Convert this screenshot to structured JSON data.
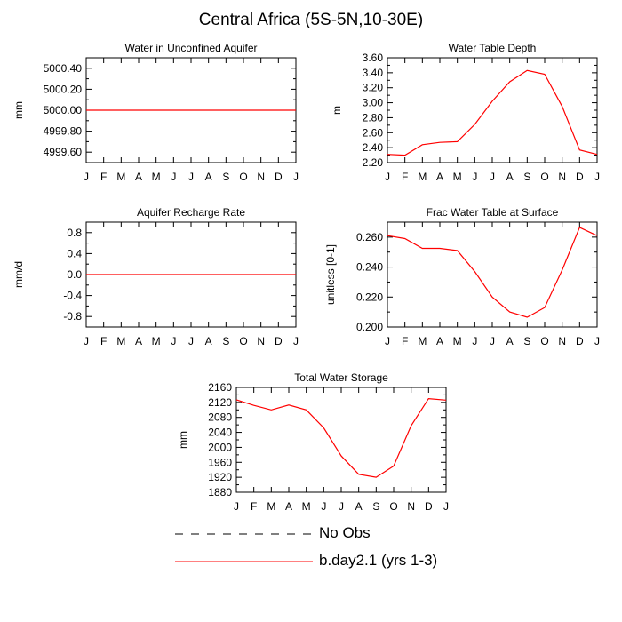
{
  "title": "Central Africa (5S-5N,10-30E)",
  "colors": {
    "model": "#ff0000",
    "obs": "#000000",
    "axis": "#000000",
    "background": "#ffffff"
  },
  "legend": [
    {
      "label": "No Obs",
      "style": "dashed",
      "color": "#000000"
    },
    {
      "label": "b.day2.1 (yrs 1-3)",
      "style": "solid",
      "color": "#ff0000"
    }
  ],
  "chart_data": [
    {
      "type": "line",
      "title": "Water in Unconfined Aquifer",
      "ylabel": "mm",
      "categories": [
        "J",
        "F",
        "M",
        "A",
        "M",
        "J",
        "J",
        "A",
        "S",
        "O",
        "N",
        "D",
        "J"
      ],
      "yticks": [
        "4999.60",
        "4999.80",
        "5000.00",
        "5000.20",
        "5000.40"
      ],
      "ylim": [
        4999.5,
        5000.5
      ],
      "series": [
        {
          "name": "b.day2.1 (yrs 1-3)",
          "values": [
            5000,
            5000,
            5000,
            5000,
            5000,
            5000,
            5000,
            5000,
            5000,
            5000,
            5000,
            5000,
            5000
          ]
        }
      ]
    },
    {
      "type": "line",
      "title": "Water Table Depth",
      "ylabel": "m",
      "categories": [
        "J",
        "F",
        "M",
        "A",
        "M",
        "J",
        "J",
        "A",
        "S",
        "O",
        "N",
        "D",
        "J"
      ],
      "yticks": [
        "2.20",
        "2.40",
        "2.60",
        "2.80",
        "3.00",
        "3.20",
        "3.40",
        "3.60"
      ],
      "ylim": [
        2.2,
        3.6
      ],
      "series": [
        {
          "name": "b.day2.1 (yrs 1-3)",
          "values": [
            2.31,
            2.3,
            2.44,
            2.47,
            2.48,
            2.71,
            3.02,
            3.28,
            3.43,
            3.38,
            2.95,
            2.37,
            2.31
          ]
        }
      ]
    },
    {
      "type": "line",
      "title": "Aquifer Recharge Rate",
      "ylabel": "mm/d",
      "categories": [
        "J",
        "F",
        "M",
        "A",
        "M",
        "J",
        "J",
        "A",
        "S",
        "O",
        "N",
        "D",
        "J"
      ],
      "yticks": [
        "-0.8",
        "-0.4",
        "0.0",
        "0.4",
        "0.8"
      ],
      "ylim": [
        -1.0,
        1.0
      ],
      "series": [
        {
          "name": "b.day2.1 (yrs 1-3)",
          "values": [
            0,
            0,
            0,
            0,
            0,
            0,
            0,
            0,
            0,
            0,
            0,
            0,
            0
          ]
        }
      ]
    },
    {
      "type": "line",
      "title": "Frac Water Table at Surface",
      "ylabel": "unitless [0-1]",
      "categories": [
        "J",
        "F",
        "M",
        "A",
        "M",
        "J",
        "J",
        "A",
        "S",
        "O",
        "N",
        "D",
        "J"
      ],
      "yticks": [
        "0.200",
        "0.220",
        "0.240",
        "0.260"
      ],
      "ylim": [
        0.2,
        0.27
      ],
      "series": [
        {
          "name": "b.day2.1 (yrs 1-3)",
          "values": [
            0.261,
            0.259,
            0.2525,
            0.2525,
            0.251,
            0.237,
            0.22,
            0.21,
            0.2065,
            0.213,
            0.238,
            0.2665,
            0.261
          ]
        }
      ]
    },
    {
      "type": "line",
      "title": "Total Water Storage",
      "ylabel": "mm",
      "categories": [
        "J",
        "F",
        "M",
        "A",
        "M",
        "J",
        "J",
        "A",
        "S",
        "O",
        "N",
        "D",
        "J"
      ],
      "yticks": [
        "1880",
        "1920",
        "1960",
        "2000",
        "2040",
        "2080",
        "2120",
        "2160"
      ],
      "ylim": [
        1880,
        2160
      ],
      "series": [
        {
          "name": "b.day2.1 (yrs 1-3)",
          "values": [
            2127,
            2112,
            2100,
            2113,
            2100,
            2052,
            1977,
            1928,
            1920,
            1950,
            2058,
            2130,
            2126
          ]
        }
      ]
    }
  ]
}
